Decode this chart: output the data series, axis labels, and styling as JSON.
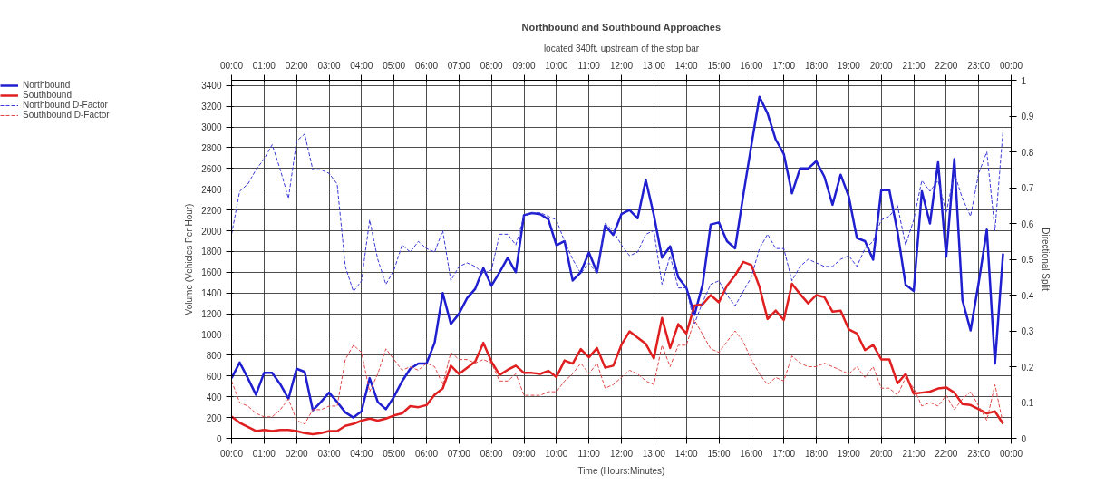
{
  "chart_data": {
    "type": "line",
    "title": "Northbound and Southbound Approaches",
    "subtitle": "located 340ft. upstream of the stop bar",
    "xlabel": "Time (Hours:Minutes)",
    "ylabel": "Volume (Vehicles Per Hour)",
    "y2label": "Directional Split",
    "x": [
      0,
      0.25,
      0.5,
      0.75,
      1,
      1.25,
      1.5,
      1.75,
      2,
      2.25,
      2.5,
      2.75,
      3,
      3.25,
      3.5,
      3.75,
      4,
      4.25,
      4.5,
      4.75,
      5,
      5.25,
      5.5,
      5.75,
      6,
      6.25,
      6.5,
      6.75,
      7,
      7.25,
      7.5,
      7.75,
      8,
      8.25,
      8.5,
      8.75,
      9,
      9.25,
      9.5,
      9.75,
      10,
      10.25,
      10.5,
      10.75,
      11,
      11.25,
      11.5,
      11.75,
      12,
      12.25,
      12.5,
      12.75,
      13,
      13.25,
      13.5,
      13.75,
      14,
      14.25,
      14.5,
      14.75,
      15,
      15.25,
      15.5,
      15.75,
      16,
      16.25,
      16.5,
      16.75,
      17,
      17.25,
      17.5,
      17.75,
      18,
      18.25,
      18.5,
      18.75,
      19,
      19.25,
      19.5,
      19.75,
      20,
      20.25,
      20.5,
      20.75,
      21,
      21.25,
      21.5,
      21.75,
      22,
      22.25,
      22.5,
      22.75,
      23,
      23.25,
      23.5,
      23.75
    ],
    "series": [
      {
        "name": "Northbound",
        "color": "#1f1fd0",
        "line_style": "solid",
        "values": [
          580,
          730,
          580,
          420,
          630,
          630,
          520,
          380,
          670,
          640,
          270,
          350,
          440,
          350,
          250,
          200,
          260,
          580,
          350,
          280,
          400,
          550,
          670,
          720,
          720,
          920,
          1400,
          1100,
          1200,
          1350,
          1440,
          1640,
          1470,
          1600,
          1740,
          1600,
          2150,
          2170,
          2160,
          2110,
          1860,
          1900,
          1520,
          1600,
          1790,
          1600,
          2050,
          1960,
          2160,
          2200,
          2120,
          2490,
          2150,
          1740,
          1850,
          1550,
          1450,
          1190,
          1480,
          2060,
          2080,
          1900,
          1830,
          2340,
          2820,
          3290,
          3130,
          2880,
          2740,
          2360,
          2600,
          2600,
          2670,
          2520,
          2250,
          2540,
          2330,
          1930,
          1900,
          1720,
          2390,
          2390,
          1990,
          1480,
          1420,
          2380,
          2070,
          2660,
          1750,
          2690,
          1330,
          1040,
          1500,
          2010,
          720,
          1780
        ]
      },
      {
        "name": "Southbound",
        "color": "#e02020",
        "line_style": "solid",
        "values": [
          210,
          150,
          110,
          70,
          80,
          70,
          80,
          80,
          70,
          50,
          40,
          50,
          70,
          70,
          120,
          140,
          170,
          190,
          170,
          190,
          220,
          240,
          310,
          300,
          320,
          420,
          480,
          700,
          620,
          680,
          740,
          920,
          740,
          610,
          660,
          700,
          630,
          630,
          620,
          650,
          590,
          750,
          720,
          860,
          780,
          870,
          680,
          700,
          900,
          1030,
          970,
          910,
          770,
          1160,
          870,
          1100,
          1010,
          1280,
          1290,
          1380,
          1310,
          1470,
          1570,
          1700,
          1670,
          1460,
          1150,
          1230,
          1140,
          1490,
          1390,
          1300,
          1380,
          1360,
          1220,
          1230,
          1050,
          1010,
          850,
          900,
          760,
          760,
          530,
          620,
          430,
          440,
          450,
          480,
          490,
          440,
          330,
          320,
          280,
          240,
          260,
          140
        ]
      },
      {
        "name": "Northbound D-Factor",
        "color": "#3a3ad8",
        "line_style": "dashed",
        "axis": "y2",
        "values": [
          0.57,
          0.69,
          0.71,
          0.75,
          0.78,
          0.82,
          0.75,
          0.67,
          0.83,
          0.85,
          0.75,
          0.75,
          0.74,
          0.71,
          0.48,
          0.41,
          0.44,
          0.61,
          0.5,
          0.43,
          0.47,
          0.54,
          0.52,
          0.55,
          0.53,
          0.52,
          0.58,
          0.44,
          0.48,
          0.49,
          0.48,
          0.46,
          0.47,
          0.57,
          0.57,
          0.54,
          0.62,
          0.63,
          0.63,
          0.62,
          0.61,
          0.55,
          0.5,
          0.46,
          0.49,
          0.46,
          0.6,
          0.58,
          0.54,
          0.51,
          0.52,
          0.57,
          0.58,
          0.43,
          0.51,
          0.42,
          0.42,
          0.32,
          0.38,
          0.43,
          0.44,
          0.4,
          0.37,
          0.41,
          0.45,
          0.53,
          0.57,
          0.53,
          0.53,
          0.44,
          0.48,
          0.5,
          0.49,
          0.48,
          0.48,
          0.5,
          0.51,
          0.48,
          0.53,
          0.55,
          0.61,
          0.62,
          0.65,
          0.54,
          0.61,
          0.72,
          0.69,
          0.72,
          0.63,
          0.74,
          0.67,
          0.62,
          0.74,
          0.8,
          0.58,
          0.86
        ]
      },
      {
        "name": "Southbound D-Factor",
        "color": "#e04848",
        "line_style": "dashed",
        "axis": "y2",
        "values": [
          0.16,
          0.1,
          0.09,
          0.07,
          0.06,
          0.06,
          0.08,
          0.11,
          0.05,
          0.04,
          0.08,
          0.08,
          0.09,
          0.09,
          0.22,
          0.26,
          0.24,
          0.13,
          0.18,
          0.25,
          0.22,
          0.19,
          0.2,
          0.19,
          0.21,
          0.2,
          0.15,
          0.24,
          0.22,
          0.22,
          0.21,
          0.22,
          0.21,
          0.16,
          0.16,
          0.18,
          0.12,
          0.12,
          0.12,
          0.13,
          0.13,
          0.16,
          0.18,
          0.21,
          0.18,
          0.21,
          0.14,
          0.15,
          0.17,
          0.19,
          0.18,
          0.16,
          0.15,
          0.26,
          0.2,
          0.26,
          0.26,
          0.33,
          0.29,
          0.25,
          0.24,
          0.27,
          0.3,
          0.27,
          0.22,
          0.18,
          0.15,
          0.17,
          0.16,
          0.23,
          0.21,
          0.2,
          0.2,
          0.21,
          0.2,
          0.19,
          0.18,
          0.2,
          0.17,
          0.2,
          0.14,
          0.14,
          0.12,
          0.17,
          0.14,
          0.09,
          0.1,
          0.09,
          0.12,
          0.08,
          0.11,
          0.13,
          0.09,
          0.05,
          0.15,
          0.04
        ]
      }
    ],
    "xlim": [
      0,
      24
    ],
    "xticks": [
      {
        "value": 0,
        "label": "00:00"
      },
      {
        "value": 1,
        "label": "01:00"
      },
      {
        "value": 2,
        "label": "02:00"
      },
      {
        "value": 3,
        "label": "03:00"
      },
      {
        "value": 4,
        "label": "04:00"
      },
      {
        "value": 5,
        "label": "05:00"
      },
      {
        "value": 6,
        "label": "06:00"
      },
      {
        "value": 7,
        "label": "07:00"
      },
      {
        "value": 8,
        "label": "08:00"
      },
      {
        "value": 9,
        "label": "09:00"
      },
      {
        "value": 10,
        "label": "10:00"
      },
      {
        "value": 11,
        "label": "11:00"
      },
      {
        "value": 12,
        "label": "12:00"
      },
      {
        "value": 13,
        "label": "13:00"
      },
      {
        "value": 14,
        "label": "14:00"
      },
      {
        "value": 15,
        "label": "15:00"
      },
      {
        "value": 16,
        "label": "16:00"
      },
      {
        "value": 17,
        "label": "17:00"
      },
      {
        "value": 18,
        "label": "18:00"
      },
      {
        "value": 19,
        "label": "19:00"
      },
      {
        "value": 20,
        "label": "20:00"
      },
      {
        "value": 21,
        "label": "21:00"
      },
      {
        "value": 22,
        "label": "22:00"
      },
      {
        "value": 23,
        "label": "23:00"
      },
      {
        "value": 24,
        "label": "00:00"
      }
    ],
    "x2lim": [
      0,
      24
    ],
    "x2ticks": [
      {
        "value": 0,
        "label": "00:00"
      },
      {
        "value": 1,
        "label": "01:00"
      },
      {
        "value": 2,
        "label": "02:00"
      },
      {
        "value": 3,
        "label": "03:00"
      },
      {
        "value": 4,
        "label": "04:00"
      },
      {
        "value": 5,
        "label": "05:00"
      },
      {
        "value": 6,
        "label": "06:00"
      },
      {
        "value": 7,
        "label": "07:00"
      },
      {
        "value": 8,
        "label": "08:00"
      },
      {
        "value": 9,
        "label": "09:00"
      },
      {
        "value": 10,
        "label": "10:00"
      },
      {
        "value": 11,
        "label": "11:00"
      },
      {
        "value": 12,
        "label": "12:00"
      },
      {
        "value": 13,
        "label": "13:00"
      },
      {
        "value": 14,
        "label": "14:00"
      },
      {
        "value": 15,
        "label": "15:00"
      },
      {
        "value": 16,
        "label": "16:00"
      },
      {
        "value": 17,
        "label": "17:00"
      },
      {
        "value": 18,
        "label": "18:00"
      },
      {
        "value": 19,
        "label": "19:00"
      },
      {
        "value": 20,
        "label": "20:00"
      },
      {
        "value": 21,
        "label": "21:00"
      },
      {
        "value": 22,
        "label": "22:00"
      },
      {
        "value": 23,
        "label": "23:00"
      },
      {
        "value": 24,
        "label": "00:00"
      }
    ],
    "ylim": [
      0,
      3450
    ],
    "yticks": [
      0,
      200,
      400,
      600,
      800,
      1000,
      1200,
      1400,
      1600,
      1800,
      2000,
      2200,
      2400,
      2600,
      2800,
      3000,
      3200,
      3400
    ],
    "y2lim": [
      0,
      1
    ],
    "y2ticks": [
      0,
      0.1,
      0.2,
      0.3,
      0.4,
      0.5,
      0.6,
      0.7,
      0.8,
      0.9,
      1
    ],
    "grid": true,
    "legend": "top left"
  }
}
